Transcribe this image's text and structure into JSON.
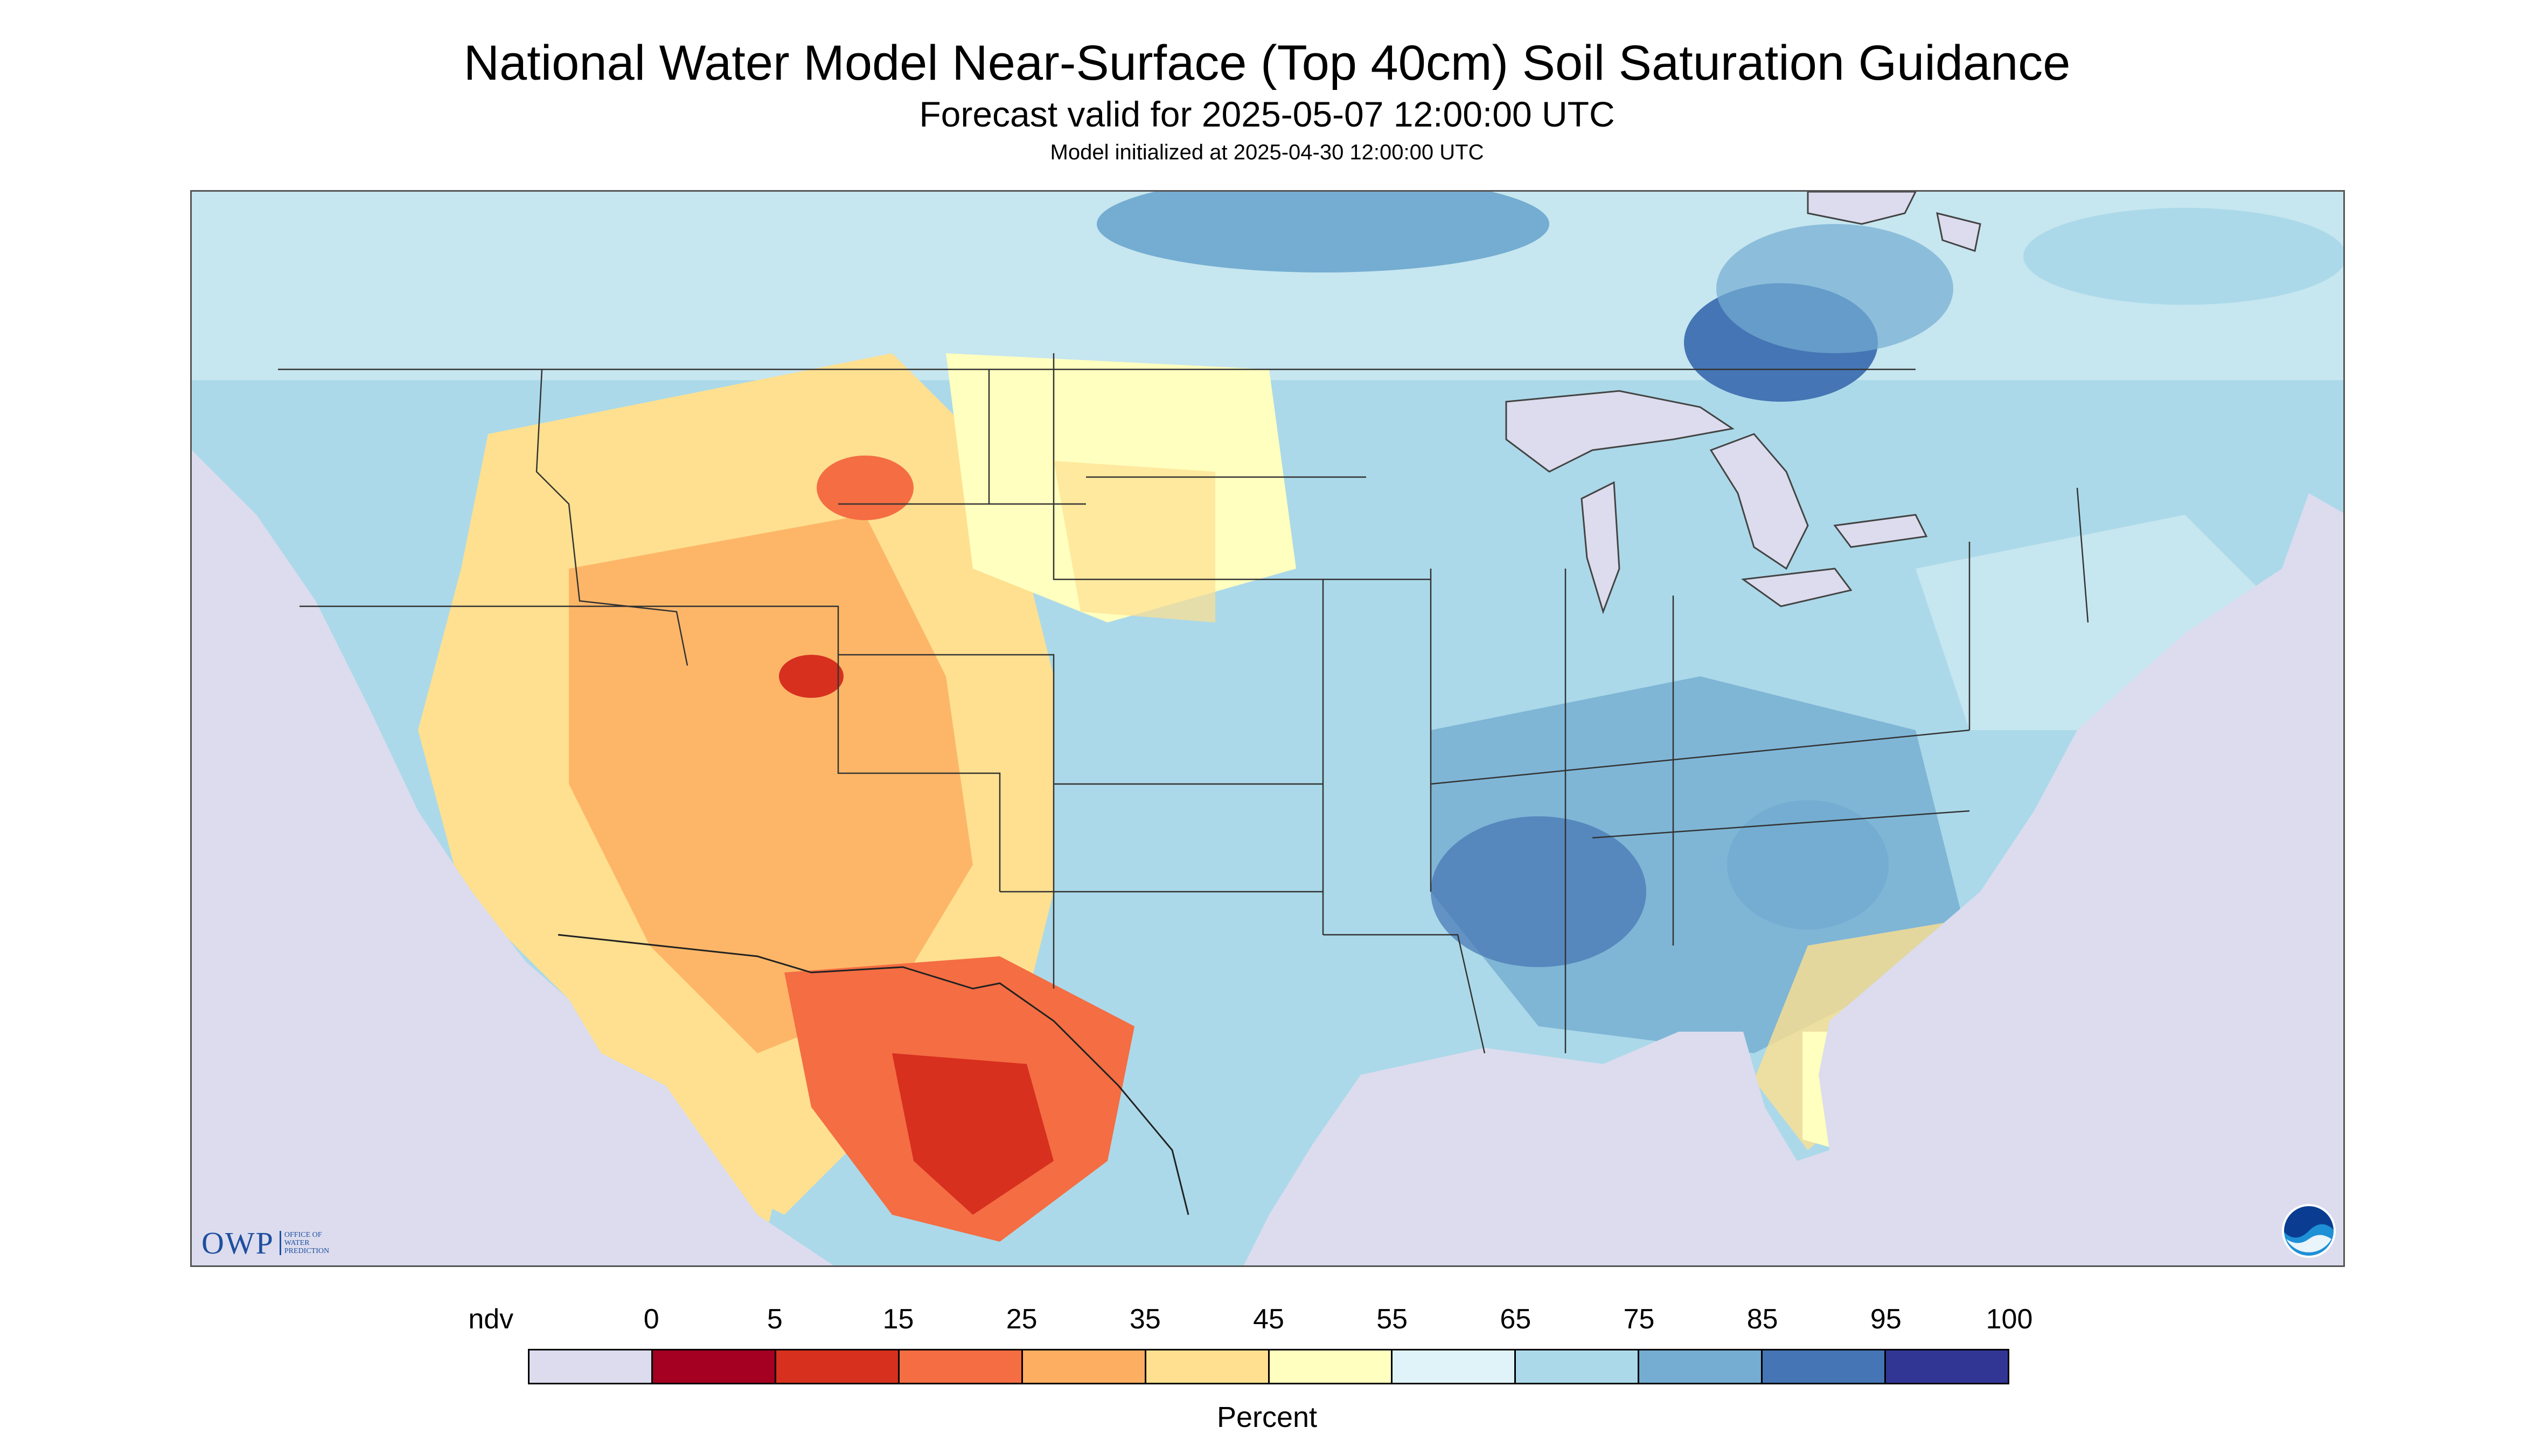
{
  "title": "National Water Model Near-Surface (Top 40cm) Soil Saturation Guidance",
  "subtitle": "Forecast valid for 2025-05-07 12:00:00 UTC",
  "init_line": "Model initialized at 2025-04-30 12:00:00 UTC",
  "legend": {
    "labels": [
      "ndv",
      "0",
      "5",
      "15",
      "25",
      "35",
      "45",
      "55",
      "65",
      "75",
      "85",
      "95",
      "100"
    ],
    "colors": [
      "#dcdcee",
      "#a50021",
      "#d7301f",
      "#f46d43",
      "#fdae61",
      "#fee090",
      "#ffffbf",
      "#e0f3f8",
      "#abd9e9",
      "#74add1",
      "#4575b4",
      "#313695"
    ],
    "unit": "Percent"
  },
  "logos": {
    "owp_text": "OWP",
    "owp_sub": [
      "OFFICE OF",
      "WATER",
      "PREDICTION"
    ],
    "noaa_icon": "noaa-logo"
  },
  "map": {
    "projection_bg": "#dcdcee",
    "water_color": "#dcdcee"
  }
}
